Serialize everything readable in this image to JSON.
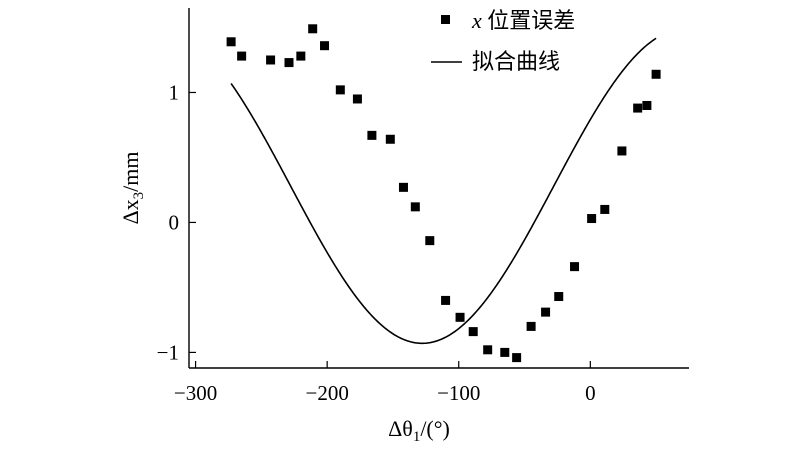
{
  "chart_data": {
    "type": "scatter",
    "xlabel_prefix": "Δθ",
    "xlabel_sub": "1",
    "xlabel_suffix": "/(°)",
    "ylabel_prefix": "Δx",
    "ylabel_sub": "3",
    "ylabel_suffix": "/mm",
    "xlim": [
      -305,
      75
    ],
    "ylim": [
      -1.12,
      1.65
    ],
    "xticks": [
      -300,
      -200,
      -100,
      0
    ],
    "xtick_labels": [
      "−300",
      "−200",
      "−100",
      "0"
    ],
    "yticks": [
      -1,
      0,
      1
    ],
    "ytick_labels": [
      "−1",
      "0",
      "1"
    ],
    "legend_position": "top-right",
    "grid": false,
    "series": [
      {
        "name_prefix": "x",
        "name_suffix": " 位置误差",
        "kind": "markers",
        "x": [
          -273,
          -265,
          -243,
          -229,
          -220,
          -211,
          -202,
          -190,
          -177,
          -166,
          -152,
          -142,
          -133,
          -122,
          -110,
          -99,
          -89,
          -78,
          -65,
          -56,
          -45,
          -34,
          -24,
          -12,
          1,
          11,
          24,
          36,
          43,
          50
        ],
        "y": [
          1.39,
          1.28,
          1.25,
          1.23,
          1.28,
          1.49,
          1.36,
          1.02,
          0.95,
          0.67,
          0.64,
          0.27,
          0.12,
          -0.14,
          -0.6,
          -0.73,
          -0.84,
          -0.98,
          -1.0,
          -1.04,
          -0.8,
          -0.69,
          -0.57,
          -0.34,
          0.03,
          0.1,
          0.55,
          0.88,
          0.9,
          1.14
        ]
      },
      {
        "name": "拟合曲线",
        "kind": "line",
        "model": {
          "offset": 0.28,
          "amplitude": 1.21,
          "angular_freq_deg": 0.9,
          "phase_deg": 25
        },
        "x_range": [
          -273,
          50
        ]
      }
    ]
  }
}
